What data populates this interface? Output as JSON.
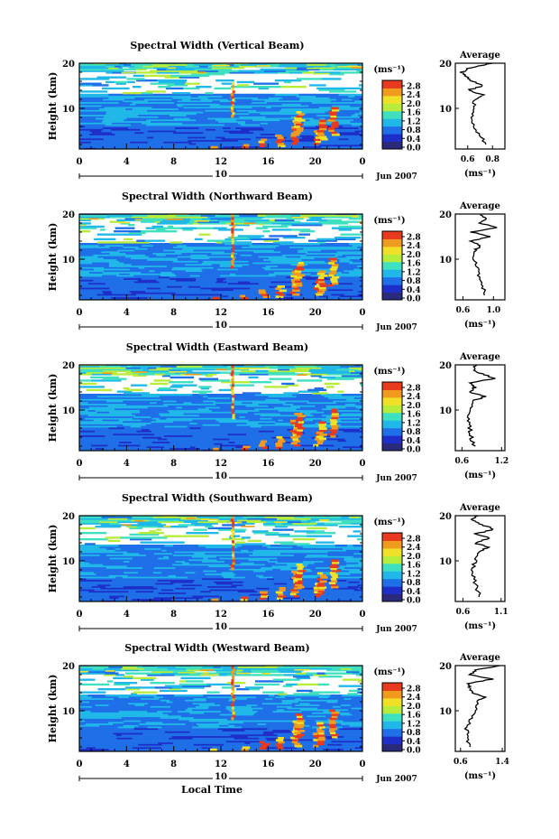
{
  "x_axis": {
    "ticks": [
      "0",
      "4",
      "8",
      "12",
      "16",
      "20",
      "0"
    ],
    "date_day": "10",
    "date_month_year": "Jun 2007",
    "label": "Local Time"
  },
  "colorbar": {
    "unit_label": "(ms⁻¹)",
    "ticks": [
      "2.8",
      "2.4",
      "2.0",
      "1.6",
      "1.2",
      "0.8",
      "0.4",
      "0.0"
    ],
    "colors": [
      "#2a2a7a",
      "#1e2ec8",
      "#1f6fe8",
      "#20b8e8",
      "#3ee0c0",
      "#b8ec3a",
      "#f0e028",
      "#f09a1e",
      "#e83a1e"
    ]
  },
  "average": {
    "title": "Average",
    "xlabel": "(ms⁻¹)"
  },
  "panels": [
    {
      "title": "Spectral Width (Vertical Beam)",
      "ylabel": "Height (km)",
      "yticks": [
        "20",
        "10"
      ],
      "avg_xticks": [
        "0.6",
        "0.8"
      ]
    },
    {
      "title": "Spectral Width (Northward Beam)",
      "ylabel": "Height (km)",
      "yticks": [
        "20",
        "10"
      ],
      "avg_xticks": [
        "0.6",
        "1.0"
      ]
    },
    {
      "title": "Spectral Width (Eastward Beam)",
      "ylabel": "Height (km)",
      "yticks": [
        "20",
        "10"
      ],
      "avg_xticks": [
        "0.6",
        "1.2"
      ]
    },
    {
      "title": "Spectral Width (Southward Beam)",
      "ylabel": "Height (km)",
      "yticks": [
        "20",
        "10"
      ],
      "avg_xticks": [
        "0.6",
        "1.1"
      ]
    },
    {
      "title": "Spectral Width (Westward Beam)",
      "ylabel": "Height (km)",
      "yticks": [
        "20",
        "10"
      ],
      "avg_xticks": [
        "0.6",
        "1.4"
      ]
    }
  ],
  "chart_data": [
    {
      "type": "heatmap",
      "title": "Spectral Width (Vertical Beam)",
      "ylabel": "Height (km)",
      "xlim": [
        0,
        24
      ],
      "ylim": [
        1,
        20
      ],
      "zlim": [
        0.0,
        2.8
      ],
      "average_profile": {
        "type": "line",
        "title": "Average",
        "xlabel": "(ms⁻¹)",
        "xlim": [
          0.5,
          0.9
        ],
        "ylim": [
          1,
          20
        ],
        "height": [
          2,
          4,
          6,
          8,
          10,
          12,
          13,
          14,
          15,
          16,
          17,
          18,
          19,
          20
        ],
        "value": [
          0.74,
          0.7,
          0.65,
          0.63,
          0.64,
          0.66,
          0.72,
          0.6,
          0.72,
          0.64,
          0.58,
          0.55,
          0.62,
          0.8
        ]
      }
    },
    {
      "type": "heatmap",
      "title": "Spectral Width (Northward Beam)",
      "ylabel": "Height (km)",
      "xlim": [
        0,
        24
      ],
      "ylim": [
        1,
        20
      ],
      "zlim": [
        0.0,
        2.8
      ],
      "average_profile": {
        "type": "line",
        "title": "Average",
        "xlabel": "(ms⁻¹)",
        "xlim": [
          0.5,
          1.15
        ],
        "ylim": [
          1,
          20
        ],
        "height": [
          2,
          4,
          6,
          8,
          10,
          12,
          13,
          14,
          15,
          16,
          17,
          18,
          19,
          20
        ],
        "value": [
          0.9,
          0.86,
          0.82,
          0.78,
          0.74,
          0.76,
          0.85,
          0.7,
          0.95,
          0.72,
          1.05,
          0.82,
          0.9,
          0.84
        ]
      }
    },
    {
      "type": "heatmap",
      "title": "Spectral Width (Eastward Beam)",
      "ylabel": "Height (km)",
      "xlim": [
        0,
        24
      ],
      "ylim": [
        1,
        20
      ],
      "zlim": [
        0.0,
        2.8
      ],
      "average_profile": {
        "type": "line",
        "title": "Average",
        "xlabel": "(ms⁻¹)",
        "xlim": [
          0.5,
          1.25
        ],
        "ylim": [
          1,
          20
        ],
        "height": [
          2,
          4,
          6,
          8,
          10,
          12,
          13,
          14,
          15,
          16,
          17,
          18,
          19,
          20
        ],
        "value": [
          0.78,
          0.74,
          0.72,
          0.7,
          0.74,
          0.76,
          0.95,
          0.72,
          0.8,
          0.7,
          1.1,
          0.9,
          0.78,
          0.82
        ]
      }
    },
    {
      "type": "heatmap",
      "title": "Spectral Width (Southward Beam)",
      "ylabel": "Height (km)",
      "xlim": [
        0,
        24
      ],
      "ylim": [
        1,
        20
      ],
      "zlim": [
        0.0,
        2.8
      ],
      "average_profile": {
        "type": "line",
        "title": "Average",
        "xlabel": "(ms⁻¹)",
        "xlim": [
          0.5,
          1.15
        ],
        "ylim": [
          1,
          20
        ],
        "height": [
          2,
          4,
          6,
          8,
          10,
          12,
          13,
          14,
          15,
          16,
          17,
          18,
          19,
          20
        ],
        "value": [
          0.82,
          0.78,
          0.74,
          0.72,
          0.76,
          0.8,
          0.92,
          0.75,
          0.95,
          0.78,
          1.0,
          0.85,
          0.72,
          0.8
        ]
      }
    },
    {
      "type": "heatmap",
      "title": "Spectral Width (Westward Beam)",
      "ylabel": "Height (km)",
      "xlim": [
        0,
        24
      ],
      "ylim": [
        1,
        20
      ],
      "zlim": [
        0.0,
        2.8
      ],
      "average_profile": {
        "type": "line",
        "title": "Average",
        "xlabel": "(ms⁻¹)",
        "xlim": [
          0.5,
          1.45
        ],
        "ylim": [
          1,
          20
        ],
        "height": [
          2,
          4,
          6,
          8,
          10,
          12,
          13,
          14,
          15,
          16,
          17,
          18,
          19,
          20
        ],
        "value": [
          0.78,
          0.74,
          0.72,
          0.8,
          0.9,
          0.92,
          1.05,
          0.85,
          0.78,
          0.72,
          1.2,
          0.8,
          0.9,
          1.35
        ]
      }
    }
  ]
}
